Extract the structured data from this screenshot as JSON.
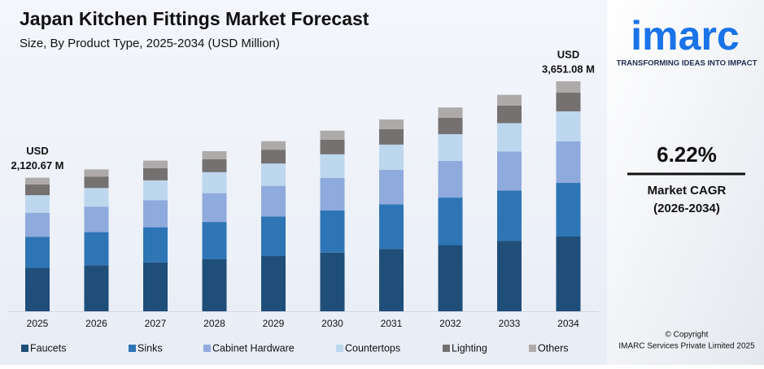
{
  "chart_data": {
    "type": "stacked_bar",
    "title": "Japan Kitchen Fittings Market Forecast",
    "subtitle": "Size, By Product Type, 2025-2034 (USD Million)",
    "categories": [
      "2025",
      "2026",
      "2027",
      "2028",
      "2029",
      "2030",
      "2031",
      "2032",
      "2033",
      "2034"
    ],
    "series": [
      {
        "name": "Faucets",
        "color": "#1f4e79",
        "values": [
          689.2,
          732,
          777,
          826,
          877,
          932,
          990,
          1051,
          1117,
          1187
        ]
      },
      {
        "name": "Sinks",
        "color": "#2e75b6",
        "values": [
          494.1,
          525,
          557,
          592,
          629,
          668,
          709,
          754,
          801,
          851
        ]
      },
      {
        "name": "Cabinet Hardware",
        "color": "#8faadc",
        "values": [
          381.7,
          405,
          431,
          457,
          486,
          516,
          548,
          582,
          618,
          658
        ]
      },
      {
        "name": "Countertops",
        "color": "#bdd7ee",
        "values": [
          277.8,
          295,
          313,
          333,
          354,
          376,
          399,
          424,
          450,
          477
        ]
      },
      {
        "name": "Lighting",
        "color": "#767171",
        "values": [
          171.8,
          182,
          194,
          206,
          219,
          232,
          247,
          262,
          278,
          297
        ]
      },
      {
        "name": "Others",
        "color": "#aeaaaa",
        "values": [
          106.1,
          113,
          120,
          127,
          135,
          143,
          152,
          162,
          172,
          181
        ]
      }
    ],
    "annotations": [
      {
        "category": "2025",
        "lines": [
          "USD",
          "2,120.67 M"
        ]
      },
      {
        "category": "2034",
        "lines": [
          "USD",
          "3,651.08 M"
        ]
      }
    ],
    "legend": "bottom"
  },
  "side_panel": {
    "logo": "imarc",
    "tagline": "TRANSFORMING IDEAS INTO IMPACT",
    "cagr": "6.22%",
    "cagr_label": "Market CAGR",
    "cagr_period": "(2026-2034)",
    "copyright": "© Copyright",
    "company": "IMARC Services Private Limited 2025"
  }
}
